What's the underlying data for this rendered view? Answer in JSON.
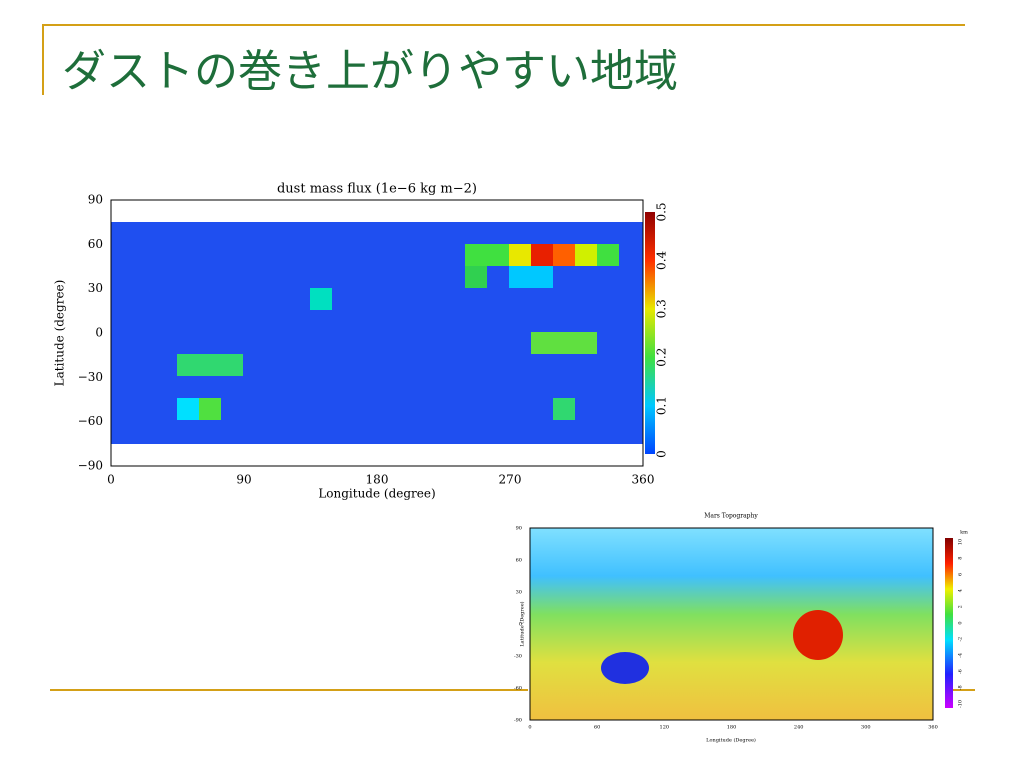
{
  "header": {
    "title": "ダストの巻き上がりやすい地域"
  },
  "figures": [
    {
      "title": "dust mass flux (1e−6 kg m−2)",
      "ylabel": "Latitude (degree)",
      "xlabel": "Longitude (degree)",
      "yticks": [
        "90",
        "60",
        "30",
        "0",
        "−30",
        "−60",
        "−90"
      ],
      "xticks": [
        "0",
        "90",
        "180",
        "270",
        "360"
      ],
      "cbticks": [
        "0",
        "0.1",
        "0.2",
        "0.3",
        "0.4",
        "0.5"
      ]
    },
    {
      "title": "Mars Topography",
      "unit": "km",
      "ylabel": "Latitude (Degree)",
      "xlabel": "Longitude (Degree)",
      "yticks": [
        "90",
        "60",
        "30",
        "0",
        "-30",
        "-60",
        "-90"
      ],
      "xticks": [
        "0",
        "60",
        "120",
        "180",
        "240",
        "300",
        "360"
      ],
      "cbticks": [
        "10",
        "8",
        "6",
        "4",
        "2",
        "0",
        "-2",
        "-4",
        "-6",
        "-8",
        "-10"
      ]
    }
  ]
}
